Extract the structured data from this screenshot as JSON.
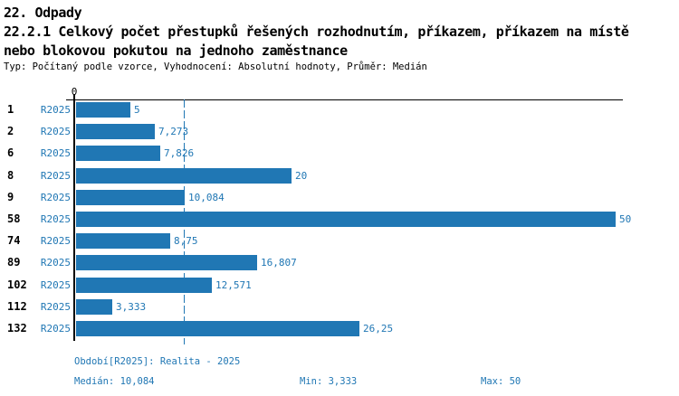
{
  "header": {
    "section": "22. Odpady",
    "title_line1": "22.2.1 Celkový počet přestupků řešených rozhodnutím, příkazem, příkazem na místě",
    "title_line2": "nebo blokovou pokutou na jednoho zaměstnance",
    "subtitle": "Typ: Počítaný podle vzorce, Vyhodnocení: Absolutní hodnoty, Průměr: Medián"
  },
  "chart_data": {
    "type": "bar",
    "orientation": "horizontal",
    "title": "22.2.1 Celkový počet přestupků řešených rozhodnutím, příkazem, příkazem na místě nebo blokovou pokutou na jednoho zaměstnance",
    "categories": [
      "1",
      "2",
      "6",
      "8",
      "9",
      "58",
      "74",
      "89",
      "102",
      "112",
      "132"
    ],
    "series_label": "R2025",
    "values": [
      5,
      7.273,
      7.826,
      20,
      10.084,
      50,
      8.75,
      16.807,
      12.571,
      3.333,
      26.25
    ],
    "value_labels": [
      "5",
      "7,273",
      "7,826",
      "20",
      "10,084",
      "50",
      "8,75",
      "16,807",
      "12,571",
      "3,333",
      "26,25"
    ],
    "axis_tick_label": "0",
    "xlim": [
      0,
      50.7
    ],
    "grid": false,
    "median_line_value": 10.084,
    "bar_color": "#2077B4"
  },
  "footer": {
    "period": "Období[R2025]: Realita - 2025",
    "median": "Medián: 10,084",
    "min": "Min: 3,333",
    "max": "Max: 50"
  },
  "colors": {
    "accent": "#2077B4",
    "text": "#000000",
    "background": "#FFFFFF"
  }
}
